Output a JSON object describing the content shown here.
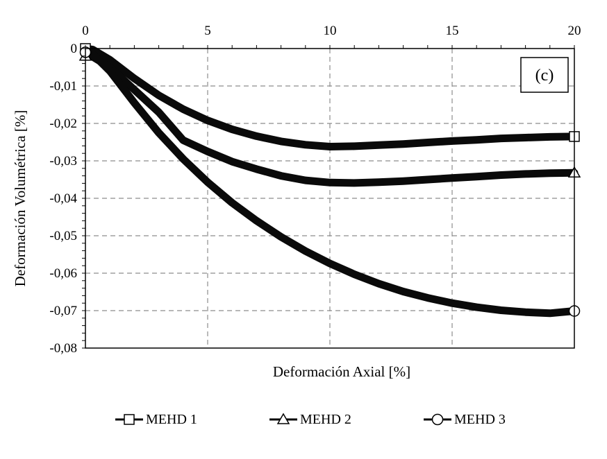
{
  "chart_data": {
    "type": "line",
    "title": "",
    "xlabel": "Deformación Axial [%]",
    "ylabel": "Deformación Volumétrica [%]",
    "xlim": [
      0,
      20
    ],
    "ylim": [
      -0.08,
      0
    ],
    "x_ticks": [
      0,
      5,
      10,
      15,
      20
    ],
    "x_tick_labels": [
      "0",
      "5",
      "10",
      "15",
      "20"
    ],
    "y_ticks": [
      0,
      -0.01,
      -0.02,
      -0.03,
      -0.04,
      -0.05,
      -0.06,
      -0.07,
      -0.08
    ],
    "y_tick_labels": [
      "0",
      "-0,01",
      "-0,02",
      "-0,03",
      "-0,04",
      "-0,05",
      "-0,06",
      "-0,07",
      "-0,08"
    ],
    "x_axis_position": "top",
    "grid": "dashed",
    "legend_position": "bottom",
    "annotation": "(c)",
    "series": [
      {
        "name": "MEHD 1",
        "marker": "square",
        "x": [
          0,
          0.3,
          1,
          2,
          3,
          4,
          5,
          6,
          7,
          8,
          9,
          10,
          11,
          12,
          13,
          14,
          15,
          16,
          17,
          18,
          19,
          20
        ],
        "y": [
          0,
          -0.0003,
          -0.003,
          -0.008,
          -0.0125,
          -0.0162,
          -0.0192,
          -0.0216,
          -0.0234,
          -0.0248,
          -0.0257,
          -0.0262,
          -0.0261,
          -0.0258,
          -0.0255,
          -0.0251,
          -0.0247,
          -0.0244,
          -0.024,
          -0.0238,
          -0.0236,
          -0.0235
        ]
      },
      {
        "name": "MEHD 2",
        "marker": "triangle",
        "x": [
          0,
          0.3,
          1,
          2,
          3,
          4,
          5,
          6,
          7,
          8,
          9,
          10,
          11,
          12,
          13,
          14,
          15,
          16,
          17,
          18,
          19,
          20
        ],
        "y": [
          -0.002,
          -0.0022,
          -0.005,
          -0.011,
          -0.017,
          -0.0245,
          -0.0275,
          -0.0302,
          -0.0322,
          -0.034,
          -0.0352,
          -0.0358,
          -0.0359,
          -0.0357,
          -0.0354,
          -0.035,
          -0.0346,
          -0.0342,
          -0.0338,
          -0.0335,
          -0.0333,
          -0.0332
        ]
      },
      {
        "name": "MEHD 3",
        "marker": "circle",
        "x": [
          0,
          0.3,
          1,
          2,
          3,
          4,
          5,
          6,
          7,
          8,
          9,
          10,
          11,
          12,
          13,
          14,
          15,
          16,
          17,
          18,
          19,
          20
        ],
        "y": [
          -0.001,
          -0.0015,
          -0.006,
          -0.0145,
          -0.0225,
          -0.0295,
          -0.0357,
          -0.0412,
          -0.046,
          -0.0503,
          -0.0541,
          -0.0574,
          -0.0603,
          -0.0628,
          -0.0649,
          -0.0666,
          -0.068,
          -0.0691,
          -0.0699,
          -0.0704,
          -0.0707,
          -0.0701
        ]
      }
    ]
  }
}
